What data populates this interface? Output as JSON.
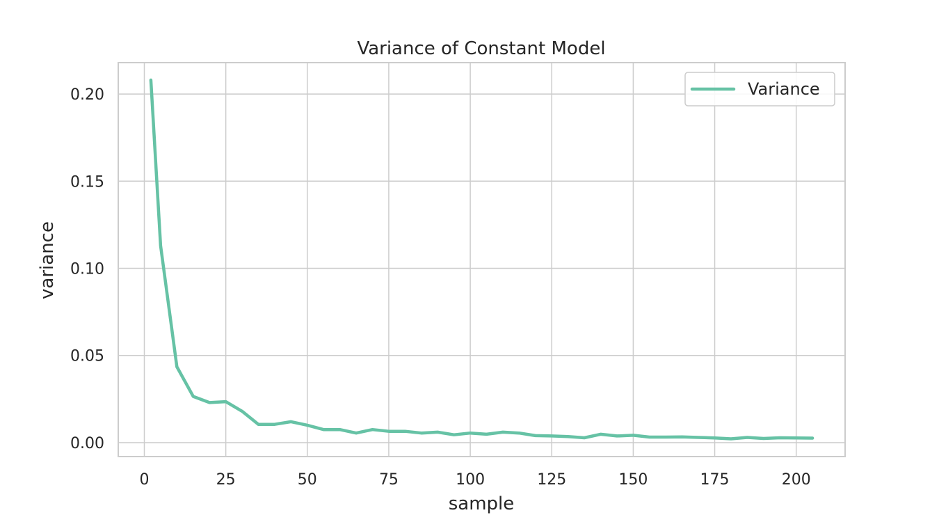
{
  "chart_data": {
    "type": "line",
    "title": "Variance of Constant Model",
    "xlabel": "sample",
    "ylabel": "variance",
    "xlim": [
      -8,
      215
    ],
    "ylim": [
      -0.008,
      0.218
    ],
    "xticks": [
      0,
      25,
      50,
      75,
      100,
      125,
      150,
      175,
      200
    ],
    "xtick_labels": [
      "0",
      "25",
      "50",
      "75",
      "100",
      "125",
      "150",
      "175",
      "200"
    ],
    "yticks": [
      0.0,
      0.05,
      0.1,
      0.15,
      0.2
    ],
    "ytick_labels": [
      "0.00",
      "0.05",
      "0.10",
      "0.15",
      "0.20"
    ],
    "grid": true,
    "legend_position": "top-right",
    "series": [
      {
        "name": "Variance",
        "color": "#66c2a5",
        "x": [
          2,
          5,
          10,
          15,
          20,
          25,
          30,
          35,
          40,
          45,
          50,
          55,
          60,
          65,
          70,
          75,
          80,
          85,
          90,
          95,
          100,
          105,
          110,
          115,
          120,
          125,
          130,
          135,
          140,
          145,
          150,
          155,
          160,
          165,
          170,
          175,
          180,
          185,
          190,
          195,
          200,
          205
        ],
        "y": [
          0.208,
          0.113,
          0.0435,
          0.0265,
          0.023,
          0.0235,
          0.018,
          0.0105,
          0.0105,
          0.012,
          0.01,
          0.0075,
          0.0075,
          0.0055,
          0.0075,
          0.0065,
          0.0065,
          0.0055,
          0.006,
          0.0045,
          0.0055,
          0.0048,
          0.006,
          0.0055,
          0.004,
          0.0038,
          0.0035,
          0.0028,
          0.0048,
          0.0038,
          0.0042,
          0.0032,
          0.0032,
          0.0033,
          0.003,
          0.0027,
          0.0022,
          0.003,
          0.0024,
          0.0028,
          0.0027,
          0.0026
        ]
      }
    ]
  }
}
